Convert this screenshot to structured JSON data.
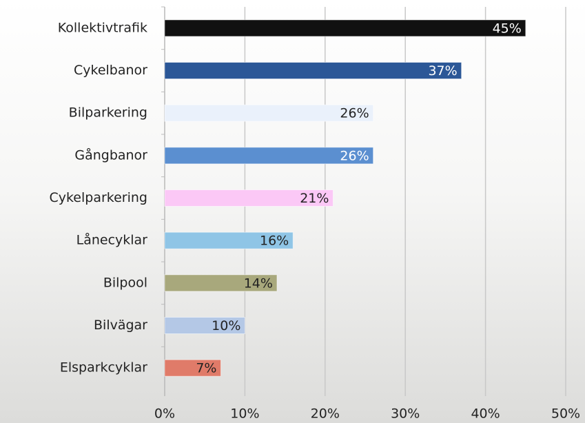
{
  "chart_data": {
    "type": "barh",
    "categories": [
      "Kollektivtrafik",
      "Cykelbanor",
      "Bilparkering",
      "Gångbanor",
      "Cykelparkering",
      "Lånecyklar",
      "Bilpool",
      "Bilvägar",
      "Elsparkcyklar"
    ],
    "values": [
      45,
      37,
      26,
      26,
      21,
      16,
      14,
      10,
      7
    ],
    "value_labels": [
      "45%",
      "37%",
      "26%",
      "26%",
      "21%",
      "16%",
      "14%",
      "10%",
      "7%"
    ],
    "colors": [
      "#111111",
      "#2b5797",
      "#eaf1fb",
      "#5b8fd0",
      "#fbc8f6",
      "#8fc5e6",
      "#a8a87c",
      "#b4c8e6",
      "#e07b69"
    ],
    "xlim": [
      0,
      50
    ],
    "xticks": [
      {
        "value": 0,
        "label": "0%"
      },
      {
        "value": 10,
        "label": "10%"
      },
      {
        "value": 20,
        "label": "20%"
      },
      {
        "value": 30,
        "label": "30%"
      },
      {
        "value": 40,
        "label": "40%"
      },
      {
        "value": 50,
        "label": "50%"
      }
    ],
    "grid": true
  }
}
